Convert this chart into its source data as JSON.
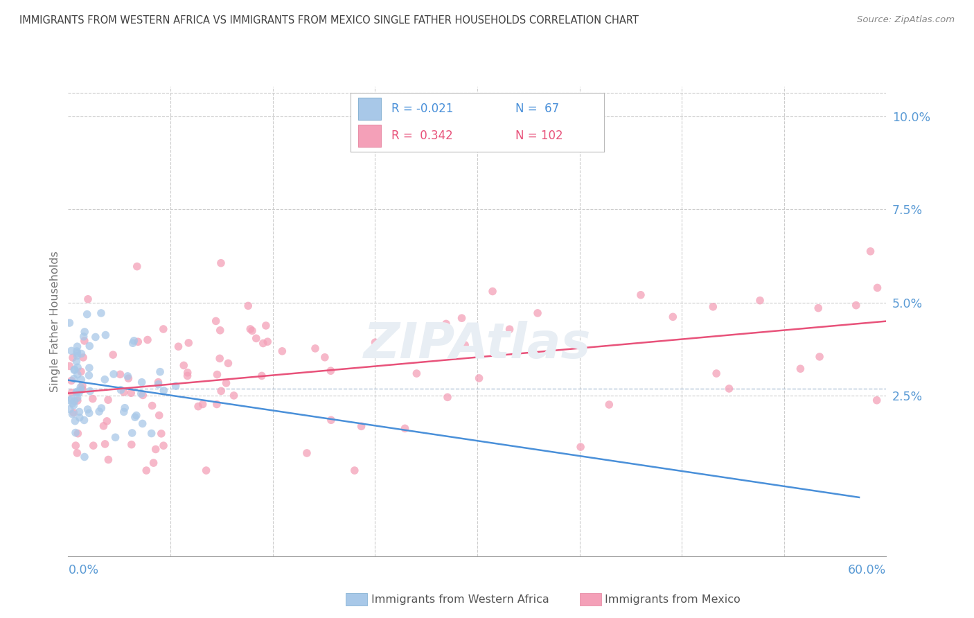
{
  "title": "IMMIGRANTS FROM WESTERN AFRICA VS IMMIGRANTS FROM MEXICO SINGLE FATHER HOUSEHOLDS CORRELATION CHART",
  "source": "Source: ZipAtlas.com",
  "ylabel": "Single Father Households",
  "xmin": 0.0,
  "xmax": 0.6,
  "ymin": -0.018,
  "ymax": 0.108,
  "color_blue": "#a8c8e8",
  "color_pink": "#f4a0b8",
  "color_line_blue": "#4a90d9",
  "color_line_pink": "#e8527a",
  "color_axis": "#5b9bd5",
  "grid_color": "#cccccc",
  "title_color": "#404040",
  "background": "#ffffff",
  "legend_r1": "R = -0.021",
  "legend_n1": "N =  67",
  "legend_r2": "R =  0.342",
  "legend_n2": "N = 102",
  "ytick_positions": [
    0.025,
    0.05,
    0.075,
    0.1
  ],
  "ytick_labels": [
    "2.5%",
    "5.0%",
    "7.5%",
    "10.0%"
  ],
  "seed": 123
}
